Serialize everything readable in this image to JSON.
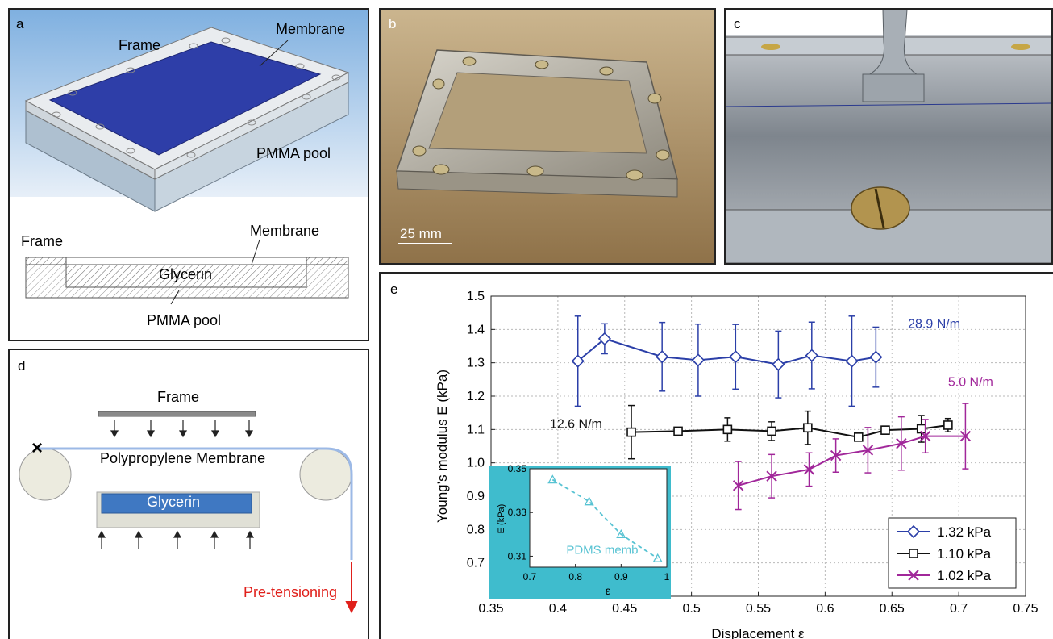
{
  "panel_a": {
    "label": "a",
    "frame_label": "Frame",
    "membrane_label": "Membrane",
    "pool_label": "PMMA pool",
    "section_frame_label": "Frame",
    "section_membrane_label": "Membrane",
    "section_glycerin_label": "Glycerin",
    "section_pool_label": "PMMA pool",
    "colors": {
      "sky": "#7fb0e0",
      "membrane": "#2e3ea8",
      "frame": "#e9ecef",
      "pool": "#aec0d0"
    }
  },
  "panel_b": {
    "label": "b",
    "scale_bar_label": "25 mm",
    "colors": {
      "background": "#b6996b",
      "metal": "#b9b5aa"
    }
  },
  "panel_c": {
    "label": "c",
    "colors": {
      "background": "#8f959c",
      "plate": "#c6ccd2"
    }
  },
  "panel_d": {
    "label": "d",
    "frame_label": "Frame",
    "membrane_label": "Polypropylene Membrane",
    "glycerin_label": "Glycerin",
    "pretension_label": "Pre-tensioning",
    "fixed_mark": "×",
    "colors": {
      "membrane_line": "#9cb9e6",
      "glycerin": "#3f78c2",
      "arrow": "#e0201b",
      "roller": "#ecebdf",
      "tray": "#e0e0d6"
    }
  },
  "panel_e": {
    "label": "e",
    "chart_data": {
      "type": "line",
      "xlabel": "Displacement ε",
      "ylabel": "Young’s modulus E (kPa)",
      "xlim": [
        0.35,
        0.75
      ],
      "ylim": [
        0.6,
        1.5
      ],
      "xticks": [
        "0.35",
        "0.4",
        "0.45",
        "0.5",
        "0.55",
        "0.6",
        "0.65",
        "0.7",
        "0.75"
      ],
      "yticks": [
        "0.7",
        "0.8",
        "0.9",
        "1.0",
        "1.1",
        "1.2",
        "1.3",
        "1.4",
        "1.5"
      ],
      "grid": true,
      "legend_position": "bottom-right",
      "series": [
        {
          "name": "1.32 kPa",
          "marker": "diamond",
          "color": "#2b3fa8",
          "x": [
            0.415,
            0.435,
            0.478,
            0.505,
            0.533,
            0.565,
            0.59,
            0.62,
            0.638
          ],
          "y": [
            1.305,
            1.372,
            1.318,
            1.308,
            1.318,
            1.295,
            1.322,
            1.305,
            1.317
          ],
          "err": [
            0.135,
            0.045,
            0.103,
            0.108,
            0.097,
            0.1,
            0.1,
            0.135,
            0.09
          ]
        },
        {
          "name": "1.10 kPa",
          "marker": "square",
          "color": "#111111",
          "x": [
            0.455,
            0.49,
            0.527,
            0.56,
            0.587,
            0.625,
            0.645,
            0.672,
            0.692
          ],
          "y": [
            1.092,
            1.095,
            1.1,
            1.095,
            1.105,
            1.077,
            1.098,
            1.102,
            1.113
          ],
          "err": [
            0.08,
            0.01,
            0.035,
            0.028,
            0.05,
            0.008,
            0.012,
            0.04,
            0.02
          ]
        },
        {
          "name": "1.02 kPa",
          "marker": "x",
          "color": "#a1279a",
          "x": [
            0.535,
            0.56,
            0.588,
            0.608,
            0.632,
            0.657,
            0.675,
            0.705
          ],
          "y": [
            0.932,
            0.96,
            0.98,
            1.022,
            1.038,
            1.058,
            1.08,
            1.08
          ],
          "err": [
            0.072,
            0.065,
            0.05,
            0.05,
            0.068,
            0.08,
            0.05,
            0.098
          ]
        }
      ],
      "annotations": [
        {
          "text": "28.9 N/m",
          "color": "#2b3fa8",
          "x": 0.662,
          "y": 1.405
        },
        {
          "text": "12.6 N/m",
          "color": "#111111",
          "x": 0.394,
          "y": 1.105
        },
        {
          "text": "5.0 N/m",
          "color": "#a1279a",
          "x": 0.692,
          "y": 1.23
        }
      ],
      "inset": {
        "type": "line",
        "xlabel": "ε",
        "ylabel": "E (kPa)",
        "xlim": [
          0.7,
          1.0
        ],
        "ylim": [
          0.305,
          0.35
        ],
        "xticks": [
          "0.7",
          "0.8",
          "0.9",
          "1"
        ],
        "yticks": [
          "0.31",
          "0.33",
          "0.35"
        ],
        "background": "#3fbccd",
        "series": [
          {
            "name": "PDMS memb",
            "marker": "triangle",
            "color": "#58c3d3",
            "x": [
              0.75,
              0.83,
              0.9,
              0.98
            ],
            "y": [
              0.345,
              0.335,
              0.32,
              0.309
            ]
          }
        ]
      }
    }
  }
}
